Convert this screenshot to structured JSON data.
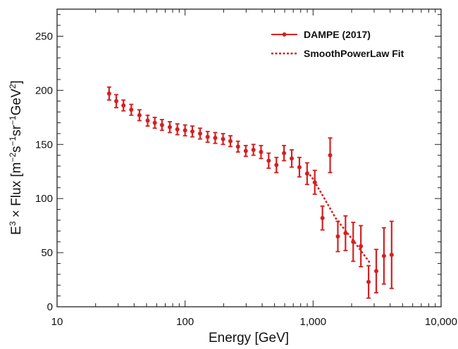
{
  "chart_data": {
    "type": "scatter",
    "title": "",
    "xlabel": "Energy [GeV]",
    "ylabel": {
      "parts": [
        {
          "text": "E",
          "sup": false
        },
        {
          "text": "3",
          "sup": true
        },
        {
          "text": " × Flux [m",
          "sup": false
        },
        {
          "text": "−2",
          "sup": true
        },
        {
          "text": "s",
          "sup": false
        },
        {
          "text": "−1",
          "sup": true
        },
        {
          "text": "sr",
          "sup": false
        },
        {
          "text": "−1",
          "sup": true
        },
        {
          "text": "GeV",
          "sup": false
        },
        {
          "text": "2",
          "sup": true
        },
        {
          "text": "]",
          "sup": false
        }
      ]
    },
    "xscale": "log",
    "xlim": [
      10,
      10000
    ],
    "ylim": [
      0,
      275
    ],
    "xticks": [
      {
        "value": 10,
        "label": "10"
      },
      {
        "value": 100,
        "label": "100"
      },
      {
        "value": 1000,
        "label": "1,000"
      },
      {
        "value": 10000,
        "label": "10,000"
      }
    ],
    "yticks": [
      {
        "value": 0,
        "label": "0"
      },
      {
        "value": 50,
        "label": "50"
      },
      {
        "value": 100,
        "label": "100"
      },
      {
        "value": 150,
        "label": "150"
      },
      {
        "value": 200,
        "label": "200"
      },
      {
        "value": 250,
        "label": "250"
      }
    ],
    "colors": {
      "series": "#d42020",
      "axis": "#222222"
    },
    "legend_position": "top-right",
    "series": [
      {
        "name": "DAMPE (2017)",
        "style": "points-with-errorbars",
        "points": [
          {
            "x": 25.5,
            "y": 197,
            "err": 6
          },
          {
            "x": 29,
            "y": 190,
            "err": 6
          },
          {
            "x": 33,
            "y": 186,
            "err": 5
          },
          {
            "x": 38,
            "y": 182,
            "err": 5
          },
          {
            "x": 44,
            "y": 177,
            "err": 5
          },
          {
            "x": 51,
            "y": 172,
            "err": 5
          },
          {
            "x": 58,
            "y": 170,
            "err": 5
          },
          {
            "x": 66,
            "y": 168,
            "err": 5
          },
          {
            "x": 76,
            "y": 166,
            "err": 5
          },
          {
            "x": 87,
            "y": 164,
            "err": 5
          },
          {
            "x": 100,
            "y": 163,
            "err": 5
          },
          {
            "x": 114,
            "y": 162,
            "err": 5
          },
          {
            "x": 131,
            "y": 160,
            "err": 5
          },
          {
            "x": 150,
            "y": 157,
            "err": 5
          },
          {
            "x": 172,
            "y": 156,
            "err": 5
          },
          {
            "x": 198,
            "y": 155,
            "err": 5
          },
          {
            "x": 226,
            "y": 153,
            "err": 5
          },
          {
            "x": 259,
            "y": 148,
            "err": 5
          },
          {
            "x": 298,
            "y": 144,
            "err": 5
          },
          {
            "x": 342,
            "y": 145,
            "err": 5
          },
          {
            "x": 392,
            "y": 143,
            "err": 6
          },
          {
            "x": 450,
            "y": 135,
            "err": 7
          },
          {
            "x": 517,
            "y": 131,
            "err": 7
          },
          {
            "x": 593,
            "y": 142,
            "err": 7
          },
          {
            "x": 681,
            "y": 137,
            "err": 8
          },
          {
            "x": 782,
            "y": 129,
            "err": 9
          },
          {
            "x": 898,
            "y": 123,
            "err": 10
          },
          {
            "x": 1031,
            "y": 115,
            "err": 11
          },
          {
            "x": 1184,
            "y": 82,
            "err": 11
          },
          {
            "x": 1359,
            "y": 140,
            "err": 16
          },
          {
            "x": 1561,
            "y": 65,
            "err": 14
          },
          {
            "x": 1792,
            "y": 68,
            "err": 16
          },
          {
            "x": 2058,
            "y": 60,
            "err": 18
          },
          {
            "x": 2363,
            "y": 56,
            "err": 19
          },
          {
            "x": 2713,
            "y": 23,
            "err": 15
          },
          {
            "x": 3116,
            "y": 33,
            "err": 20
          },
          {
            "x": 3577,
            "y": 47,
            "err": 26
          },
          {
            "x": 4108,
            "y": 48,
            "err": 31
          }
        ]
      },
      {
        "name": "SmoothPowerLaw Fit",
        "style": "dotted-line",
        "points": [
          {
            "x": 900,
            "y": 125
          },
          {
            "x": 1000,
            "y": 118
          },
          {
            "x": 1200,
            "y": 102
          },
          {
            "x": 1500,
            "y": 82
          },
          {
            "x": 1800,
            "y": 70
          },
          {
            "x": 2100,
            "y": 60
          },
          {
            "x": 2500,
            "y": 48
          },
          {
            "x": 2800,
            "y": 40
          }
        ]
      }
    ]
  }
}
